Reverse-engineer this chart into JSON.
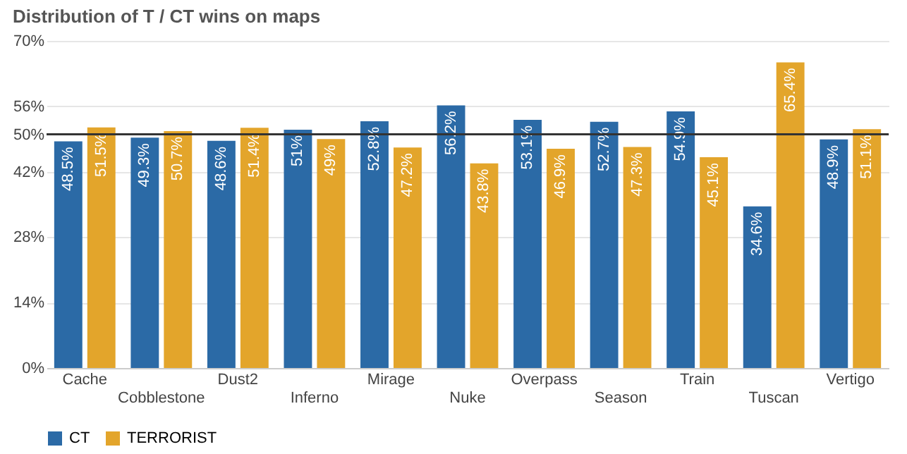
{
  "chart_data": {
    "type": "bar",
    "title": "Distribution of T / CT wins on maps",
    "categories": [
      "Cache",
      "Cobblestone",
      "Dust2",
      "Inferno",
      "Mirage",
      "Nuke",
      "Overpass",
      "Season",
      "Train",
      "Tuscan",
      "Vertigo"
    ],
    "series": [
      {
        "name": "CT",
        "color": "#2b6aa6",
        "values": [
          48.5,
          49.3,
          48.6,
          51,
          52.8,
          56.2,
          53.1,
          52.7,
          54.9,
          34.6,
          48.9
        ],
        "value_labels": [
          "48.5%",
          "49.3%",
          "48.6%",
          "51%",
          "52.8%",
          "56.2%",
          "53.1%",
          "52.7%",
          "54.9%",
          "34.6%",
          "48.9%"
        ]
      },
      {
        "name": "TERRORIST",
        "color": "#e3a52b",
        "values": [
          51.5,
          50.7,
          51.4,
          49,
          47.2,
          43.8,
          46.9,
          47.3,
          45.1,
          65.4,
          51.1
        ],
        "value_labels": [
          "51.5%",
          "50.7%",
          "51.4%",
          "49%",
          "47.2%",
          "43.8%",
          "46.9%",
          "47.3%",
          "45.1%",
          "65.4%",
          "51.1%"
        ]
      }
    ],
    "ylim": [
      0,
      70
    ],
    "yticks": [
      {
        "value": 0,
        "label": "0%"
      },
      {
        "value": 14,
        "label": "14%"
      },
      {
        "value": 28,
        "label": "28%"
      },
      {
        "value": 42,
        "label": "42%"
      },
      {
        "value": 50,
        "label": "50%"
      },
      {
        "value": 56,
        "label": "56%"
      },
      {
        "value": 70,
        "label": "70%"
      }
    ],
    "ref_lines": [
      {
        "axis": "y",
        "value": 50,
        "color": "#333333"
      }
    ],
    "grid": "y",
    "legend": "bottom"
  }
}
